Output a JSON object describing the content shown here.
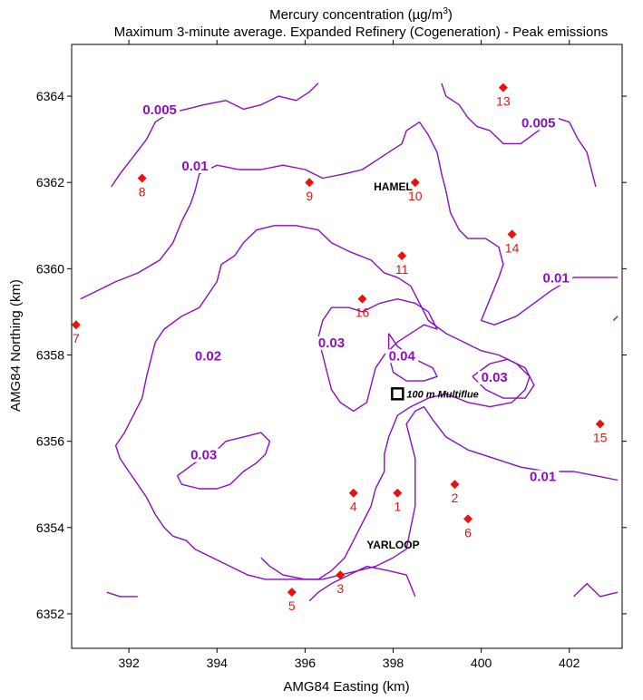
{
  "chart_data": {
    "type": "contour",
    "title": "Mercury concentration (µg/m³)",
    "title_main": "Mercury concentration (µg/m",
    "title_sup": "3",
    "title_end": ")",
    "subtitle": "Maximum 3-minute average.  Expanded Refinery (Cogeneration) - Peak emissions",
    "xlabel": "AMG84 Easting (km)",
    "ylabel": "AMG84 Northing (km)",
    "xlim": [
      390.7,
      403.2
    ],
    "ylim": [
      6351.2,
      6365.2
    ],
    "x_ticks": [
      "392",
      "394",
      "396",
      "398",
      "400",
      "402"
    ],
    "y_ticks": [
      "6352",
      "6354",
      "6356",
      "6358",
      "6360",
      "6362",
      "6364"
    ],
    "contour_color": "#8a0fc4",
    "receptor_color": "#e8140c",
    "contour_labels": [
      {
        "text": "0.005",
        "x": 392.7,
        "y": 6363.6
      },
      {
        "text": "0.005",
        "x": 401.3,
        "y": 6363.3
      },
      {
        "text": "0.01",
        "x": 393.5,
        "y": 6362.3
      },
      {
        "text": "0.01",
        "x": 401.7,
        "y": 6359.7
      },
      {
        "text": "0.01",
        "x": 401.4,
        "y": 6355.1
      },
      {
        "text": "0.02",
        "x": 393.8,
        "y": 6357.9
      },
      {
        "text": "0.03",
        "x": 396.6,
        "y": 6358.2
      },
      {
        "text": "0.04",
        "x": 398.2,
        "y": 6357.9
      },
      {
        "text": "0.03",
        "x": 400.3,
        "y": 6357.4
      },
      {
        "text": "0.03",
        "x": 393.7,
        "y": 6355.6
      }
    ],
    "towns": [
      {
        "name": "HAMEL",
        "x": 398.0,
        "y": 6361.9
      },
      {
        "name": "YARLOOP",
        "x": 398.0,
        "y": 6353.6
      }
    ],
    "source": {
      "label": "100 m Multiflue",
      "x": 398.1,
      "y": 6357.1
    },
    "receptors": [
      {
        "id": "1",
        "x": 398.1,
        "y": 6354.8
      },
      {
        "id": "2",
        "x": 399.4,
        "y": 6355.0
      },
      {
        "id": "3",
        "x": 396.8,
        "y": 6352.9
      },
      {
        "id": "4",
        "x": 397.1,
        "y": 6354.8
      },
      {
        "id": "5",
        "x": 395.7,
        "y": 6352.5
      },
      {
        "id": "6",
        "x": 399.7,
        "y": 6354.2
      },
      {
        "id": "7",
        "x": 390.8,
        "y": 6358.7
      },
      {
        "id": "8",
        "x": 392.3,
        "y": 6362.1
      },
      {
        "id": "9",
        "x": 396.1,
        "y": 6362.0
      },
      {
        "id": "10",
        "x": 398.5,
        "y": 6362.0
      },
      {
        "id": "11",
        "x": 398.2,
        "y": 6360.3
      },
      {
        "id": "13",
        "x": 400.5,
        "y": 6364.2
      },
      {
        "id": "14",
        "x": 400.7,
        "y": 6360.8
      },
      {
        "id": "15",
        "x": 402.7,
        "y": 6356.4
      },
      {
        "id": "16",
        "x": 397.3,
        "y": 6359.3
      }
    ],
    "contours": [
      {
        "level": "0.005",
        "points": [
          [
            391.6,
            6361.9
          ],
          [
            391.8,
            6362.2
          ],
          [
            392.1,
            6362.6
          ],
          [
            392.4,
            6363.0
          ],
          [
            392.6,
            6363.4
          ],
          [
            392.9,
            6363.6
          ],
          [
            393.3,
            6363.7
          ],
          [
            393.7,
            6363.8
          ],
          [
            394.2,
            6363.9
          ],
          [
            394.6,
            6363.7
          ],
          [
            395.0,
            6363.8
          ],
          [
            395.4,
            6364.0
          ],
          [
            395.8,
            6363.9
          ],
          [
            396.1,
            6364.1
          ],
          [
            396.3,
            6364.3
          ]
        ]
      },
      {
        "level": "0.005",
        "points": [
          [
            399.1,
            6364.3
          ],
          [
            399.2,
            6364.0
          ],
          [
            399.5,
            6363.8
          ],
          [
            399.7,
            6363.5
          ],
          [
            399.9,
            6363.3
          ],
          [
            400.2,
            6363.2
          ],
          [
            400.5,
            6362.9
          ],
          [
            400.9,
            6362.9
          ],
          [
            401.3,
            6363.2
          ],
          [
            401.7,
            6363.5
          ],
          [
            402.0,
            6363.4
          ],
          [
            402.2,
            6363.0
          ],
          [
            402.4,
            6362.7
          ],
          [
            402.5,
            6362.3
          ],
          [
            402.6,
            6361.9
          ]
        ]
      },
      {
        "level": "0.01",
        "points": [
          [
            390.9,
            6359.3
          ],
          [
            391.3,
            6359.5
          ],
          [
            391.7,
            6359.7
          ],
          [
            392.2,
            6359.9
          ],
          [
            392.7,
            6360.2
          ],
          [
            393.0,
            6360.6
          ],
          [
            393.2,
            6361.1
          ],
          [
            393.4,
            6361.5
          ],
          [
            393.5,
            6361.8
          ],
          [
            393.6,
            6362.2
          ],
          [
            394.0,
            6362.4
          ],
          [
            394.5,
            6362.3
          ],
          [
            395.0,
            6362.3
          ],
          [
            395.5,
            6362.4
          ],
          [
            396.0,
            6362.3
          ],
          [
            396.4,
            6362.1
          ],
          [
            396.9,
            6362.2
          ],
          [
            397.3,
            6362.3
          ],
          [
            397.6,
            6362.5
          ],
          [
            397.9,
            6362.7
          ],
          [
            398.2,
            6362.9
          ],
          [
            398.3,
            6363.2
          ],
          [
            398.6,
            6363.4
          ],
          [
            398.8,
            6363.1
          ],
          [
            399.0,
            6362.7
          ],
          [
            399.1,
            6362.2
          ],
          [
            399.2,
            6361.8
          ],
          [
            399.3,
            6361.3
          ],
          [
            399.5,
            6360.9
          ],
          [
            399.7,
            6360.7
          ],
          [
            400.1,
            6360.7
          ],
          [
            400.4,
            6360.5
          ],
          [
            400.5,
            6360.1
          ],
          [
            400.4,
            6359.8
          ],
          [
            400.2,
            6359.3
          ],
          [
            400.0,
            6358.8
          ],
          [
            400.3,
            6358.7
          ],
          [
            400.8,
            6358.9
          ],
          [
            401.2,
            6359.2
          ],
          [
            401.6,
            6359.5
          ],
          [
            402.1,
            6359.8
          ],
          [
            402.6,
            6359.8
          ],
          [
            403.1,
            6359.8
          ]
        ]
      },
      {
        "level": "0.01",
        "points": [
          [
            403.1,
            6358.9
          ],
          [
            403.0,
            6358.8
          ]
        ]
      },
      {
        "level": "0.01",
        "points": [
          [
            403.1,
            6355.1
          ],
          [
            402.6,
            6355.2
          ],
          [
            402.1,
            6355.3
          ],
          [
            401.5,
            6355.3
          ],
          [
            400.9,
            6355.4
          ],
          [
            400.3,
            6355.6
          ],
          [
            399.7,
            6355.8
          ],
          [
            399.2,
            6356.1
          ],
          [
            398.9,
            6356.5
          ],
          [
            398.7,
            6356.8
          ],
          [
            398.5,
            6356.7
          ],
          [
            398.3,
            6356.4
          ],
          [
            398.4,
            6356.0
          ],
          [
            398.5,
            6355.6
          ],
          [
            398.5,
            6355.0
          ],
          [
            398.5,
            6354.5
          ],
          [
            398.4,
            6354.0
          ],
          [
            398.3,
            6353.5
          ],
          [
            398.0,
            6353.3
          ],
          [
            397.6,
            6353.1
          ],
          [
            397.2,
            6353.0
          ],
          [
            396.8,
            6352.9
          ],
          [
            396.4,
            6352.8
          ],
          [
            396.0,
            6352.8
          ],
          [
            395.5,
            6352.9
          ],
          [
            395.2,
            6353.1
          ],
          [
            395.0,
            6353.3
          ]
        ]
      },
      {
        "level": "0.01",
        "points": [
          [
            396.1,
            6352.3
          ],
          [
            396.3,
            6352.5
          ],
          [
            396.6,
            6352.7
          ],
          [
            397.0,
            6352.9
          ],
          [
            397.4,
            6353.1
          ],
          [
            397.9,
            6353.0
          ],
          [
            398.3,
            6352.9
          ],
          [
            398.5,
            6352.4
          ]
        ]
      },
      {
        "level": "0.01",
        "points": [
          [
            391.5,
            6352.5
          ],
          [
            391.8,
            6352.4
          ],
          [
            392.2,
            6352.4
          ]
        ]
      },
      {
        "level": "0.01",
        "points": [
          [
            402.1,
            6352.4
          ],
          [
            402.4,
            6352.7
          ],
          [
            402.7,
            6352.4
          ],
          [
            403.1,
            6352.5
          ]
        ]
      },
      {
        "level": "0.02",
        "points": [
          [
            397.8,
            6359.9
          ],
          [
            397.5,
            6360.2
          ],
          [
            397.0,
            6360.4
          ],
          [
            396.6,
            6360.6
          ],
          [
            396.3,
            6360.9
          ],
          [
            395.8,
            6361.0
          ],
          [
            395.3,
            6361.0
          ],
          [
            394.9,
            6360.9
          ],
          [
            394.6,
            6360.6
          ],
          [
            394.4,
            6360.3
          ],
          [
            394.1,
            6360.1
          ],
          [
            394.0,
            6359.7
          ],
          [
            393.8,
            6359.4
          ],
          [
            393.6,
            6359.1
          ],
          [
            393.2,
            6358.9
          ],
          [
            392.8,
            6358.6
          ],
          [
            392.6,
            6358.3
          ],
          [
            392.5,
            6357.9
          ],
          [
            392.4,
            6357.5
          ],
          [
            392.3,
            6357.0
          ],
          [
            392.1,
            6356.6
          ],
          [
            391.9,
            6356.2
          ],
          [
            391.7,
            6355.9
          ],
          [
            391.8,
            6355.6
          ],
          [
            392.0,
            6355.3
          ],
          [
            392.2,
            6355.0
          ],
          [
            392.4,
            6354.7
          ],
          [
            392.6,
            6354.3
          ],
          [
            392.8,
            6354.0
          ],
          [
            393.0,
            6353.8
          ],
          [
            393.3,
            6353.7
          ],
          [
            393.5,
            6353.5
          ],
          [
            393.9,
            6353.3
          ],
          [
            394.3,
            6353.1
          ],
          [
            394.7,
            6352.9
          ],
          [
            395.1,
            6352.8
          ],
          [
            395.5,
            6352.8
          ],
          [
            395.9,
            6352.8
          ],
          [
            396.3,
            6352.8
          ],
          [
            396.6,
            6353.0
          ],
          [
            396.9,
            6353.3
          ],
          [
            397.1,
            6353.7
          ],
          [
            397.3,
            6354.1
          ],
          [
            397.5,
            6354.5
          ],
          [
            397.6,
            6354.9
          ],
          [
            397.8,
            6355.3
          ],
          [
            397.8,
            6355.7
          ],
          [
            397.9,
            6356.1
          ],
          [
            398.1,
            6356.6
          ],
          [
            398.4,
            6356.8
          ],
          [
            398.8,
            6357.0
          ],
          [
            399.2,
            6357.1
          ],
          [
            399.7,
            6356.9
          ],
          [
            400.2,
            6356.8
          ],
          [
            400.7,
            6356.9
          ],
          [
            401.0,
            6357.2
          ],
          [
            401.1,
            6357.5
          ],
          [
            400.8,
            6357.8
          ],
          [
            400.4,
            6358.0
          ],
          [
            400.0,
            6358.1
          ],
          [
            399.6,
            6358.3
          ],
          [
            399.2,
            6358.5
          ],
          [
            398.8,
            6358.8
          ],
          [
            398.6,
            6359.2
          ],
          [
            398.4,
            6359.6
          ],
          [
            398.1,
            6359.8
          ],
          [
            397.8,
            6359.9
          ]
        ]
      },
      {
        "level": "0.03",
        "points": [
          [
            397.3,
            6359.0
          ],
          [
            397.0,
            6359.1
          ],
          [
            396.6,
            6359.1
          ],
          [
            396.4,
            6358.8
          ],
          [
            396.3,
            6358.4
          ],
          [
            396.4,
            6358.0
          ],
          [
            396.5,
            6357.6
          ],
          [
            396.6,
            6357.2
          ],
          [
            396.8,
            6356.9
          ],
          [
            397.1,
            6356.7
          ],
          [
            397.4,
            6356.9
          ],
          [
            397.5,
            6357.3
          ],
          [
            397.6,
            6357.7
          ],
          [
            397.8,
            6358.0
          ],
          [
            398.1,
            6358.3
          ],
          [
            398.4,
            6358.5
          ],
          [
            398.7,
            6358.7
          ],
          [
            399.0,
            6358.6
          ],
          [
            398.8,
            6359.0
          ],
          [
            398.5,
            6359.2
          ],
          [
            398.1,
            6359.3
          ],
          [
            397.7,
            6359.2
          ],
          [
            397.3,
            6359.0
          ]
        ]
      },
      {
        "level": "0.04",
        "points": [
          [
            397.9,
            6358.5
          ],
          [
            398.1,
            6358.2
          ],
          [
            398.5,
            6357.9
          ],
          [
            398.9,
            6357.7
          ],
          [
            399.0,
            6357.5
          ],
          [
            398.7,
            6357.4
          ],
          [
            398.3,
            6357.4
          ],
          [
            398.0,
            6357.6
          ],
          [
            397.9,
            6358.0
          ],
          [
            397.9,
            6358.5
          ]
        ]
      },
      {
        "level": "0.03",
        "points": [
          [
            399.8,
            6357.5
          ],
          [
            400.2,
            6357.8
          ],
          [
            400.6,
            6357.9
          ],
          [
            401.0,
            6357.7
          ],
          [
            401.2,
            6357.3
          ],
          [
            401.0,
            6357.0
          ],
          [
            400.5,
            6357.0
          ],
          [
            400.1,
            6357.2
          ],
          [
            399.8,
            6357.5
          ]
        ]
      },
      {
        "level": "0.03",
        "points": [
          [
            393.1,
            6355.2
          ],
          [
            393.5,
            6355.5
          ],
          [
            393.9,
            6355.7
          ],
          [
            394.2,
            6356.0
          ],
          [
            394.6,
            6356.1
          ],
          [
            395.0,
            6356.2
          ],
          [
            395.2,
            6356.0
          ],
          [
            395.1,
            6355.7
          ],
          [
            394.9,
            6355.5
          ],
          [
            394.6,
            6355.3
          ],
          [
            394.3,
            6355.0
          ],
          [
            394.0,
            6354.9
          ],
          [
            393.6,
            6354.9
          ],
          [
            393.2,
            6355.0
          ],
          [
            393.1,
            6355.2
          ]
        ]
      }
    ]
  }
}
